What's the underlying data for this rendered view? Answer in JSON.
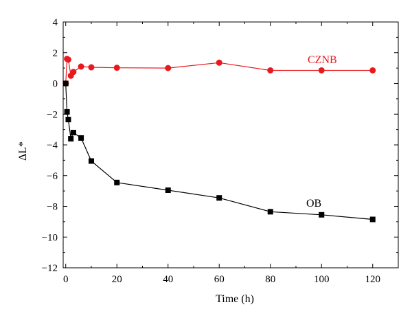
{
  "chart_data": {
    "type": "line",
    "xlabel": "Time (h)",
    "ylabel": "ΔL*",
    "xlim": [
      -1,
      130
    ],
    "ylim": [
      -12,
      4
    ],
    "xticks": [
      0,
      20,
      40,
      60,
      80,
      100,
      120
    ],
    "yticks": [
      -12,
      -10,
      -8,
      -6,
      -4,
      -2,
      0,
      2,
      4
    ],
    "grid": false,
    "series": [
      {
        "name": "CZNB",
        "color": "#e8191e",
        "marker": "circle",
        "x": [
          0,
          0.5,
          1,
          2,
          3,
          6,
          10,
          20,
          40,
          60,
          80,
          100,
          120
        ],
        "y": [
          0.0,
          1.6,
          1.55,
          0.5,
          0.75,
          1.1,
          1.05,
          1.02,
          1.0,
          1.35,
          0.85,
          0.85,
          0.85
        ]
      },
      {
        "name": "OB",
        "color": "#000000",
        "marker": "square",
        "x": [
          0,
          0.5,
          1,
          2,
          3,
          6,
          10,
          20,
          40,
          60,
          80,
          100,
          120
        ],
        "y": [
          0.0,
          -1.85,
          -2.35,
          -3.6,
          -3.2,
          -3.55,
          -5.05,
          -6.45,
          -6.95,
          -7.45,
          -8.35,
          -8.55,
          -8.85
        ]
      }
    ]
  }
}
